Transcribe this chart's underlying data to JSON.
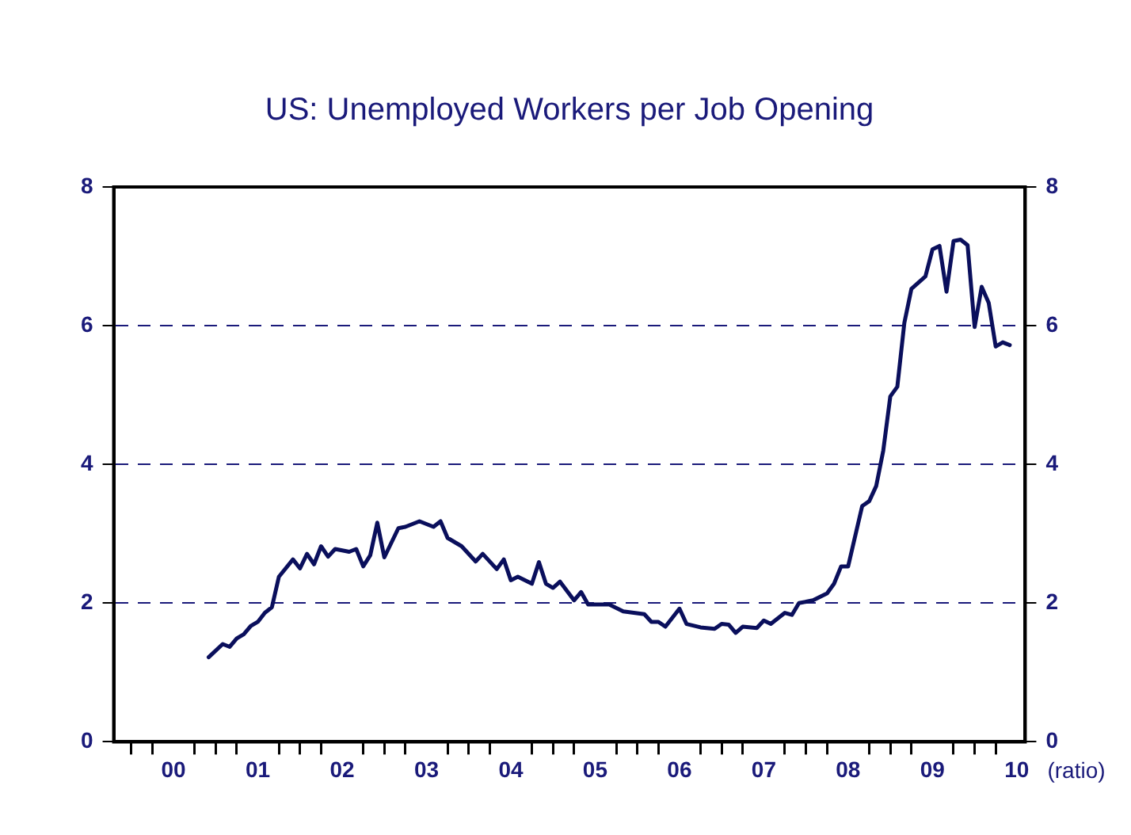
{
  "chart_data": {
    "type": "line",
    "title": "US: Unemployed Workers per Job Opening",
    "x": [
      "2000-12",
      "2001-02",
      "2001-03",
      "2001-04",
      "2001-05",
      "2001-06",
      "2001-07",
      "2001-08",
      "2001-09",
      "2001-10",
      "2001-12",
      "2002-01",
      "2002-02",
      "2002-03",
      "2002-04",
      "2002-05",
      "2002-06",
      "2002-08",
      "2002-09",
      "2002-10",
      "2002-11",
      "2002-12",
      "2003-01",
      "2003-03",
      "2003-04",
      "2003-06",
      "2003-08",
      "2003-09",
      "2003-10",
      "2003-12",
      "2004-02",
      "2004-03",
      "2004-05",
      "2004-06",
      "2004-07",
      "2004-08",
      "2004-10",
      "2004-11",
      "2004-12",
      "2005-01",
      "2005-02",
      "2005-04",
      "2005-05",
      "2005-06",
      "2005-09",
      "2005-11",
      "2006-02",
      "2006-03",
      "2006-04",
      "2006-05",
      "2006-07",
      "2006-08",
      "2006-10",
      "2006-12",
      "2007-01",
      "2007-02",
      "2007-03",
      "2007-04",
      "2007-06",
      "2007-07",
      "2007-08",
      "2007-10",
      "2007-11",
      "2007-12",
      "2008-02",
      "2008-04",
      "2008-05",
      "2008-06",
      "2008-07",
      "2008-09",
      "2008-10",
      "2008-11",
      "2008-12",
      "2009-01",
      "2009-02",
      "2009-03",
      "2009-04",
      "2009-06",
      "2009-07",
      "2009-08",
      "2009-09",
      "2009-10",
      "2009-11",
      "2009-12",
      "2010-01",
      "2010-02",
      "2010-03",
      "2010-04",
      "2010-05",
      "2010-06"
    ],
    "series": [
      {
        "color": "#0a0f5c",
        "values": [
          1.22,
          1.41,
          1.37,
          1.49,
          1.55,
          1.67,
          1.73,
          1.86,
          1.94,
          2.38,
          2.63,
          2.5,
          2.71,
          2.56,
          2.82,
          2.67,
          2.78,
          2.74,
          2.78,
          2.53,
          2.69,
          3.16,
          2.66,
          3.08,
          3.1,
          3.18,
          3.1,
          3.18,
          2.94,
          2.82,
          2.6,
          2.71,
          2.49,
          2.63,
          2.33,
          2.38,
          2.28,
          2.59,
          2.28,
          2.22,
          2.31,
          2.04,
          2.16,
          1.98,
          1.98,
          1.88,
          1.84,
          1.73,
          1.73,
          1.66,
          1.92,
          1.7,
          1.65,
          1.63,
          1.7,
          1.69,
          1.57,
          1.66,
          1.64,
          1.75,
          1.7,
          1.86,
          1.83,
          2.0,
          2.04,
          2.14,
          2.28,
          2.53,
          2.53,
          3.4,
          3.47,
          3.69,
          4.2,
          4.98,
          5.12,
          6.04,
          6.53,
          6.71,
          7.1,
          7.15,
          6.49,
          7.22,
          7.24,
          7.16,
          5.98,
          6.56,
          6.33,
          5.7,
          5.76,
          5.72
        ]
      }
    ],
    "xlim": [
      "1999-10-16",
      "2010-08-07"
    ],
    "xticks": [
      {
        "value": "2000-01",
        "label": null
      },
      {
        "value": "2000-04",
        "label": null
      },
      {
        "value": "2000-07",
        "label": "00"
      },
      {
        "value": "2000-10",
        "label": null
      },
      {
        "value": "2001-01",
        "label": null
      },
      {
        "value": "2001-04",
        "label": null
      },
      {
        "value": "2001-07",
        "label": "01"
      },
      {
        "value": "2001-10",
        "label": null
      },
      {
        "value": "2002-01",
        "label": null
      },
      {
        "value": "2002-04",
        "label": null
      },
      {
        "value": "2002-07",
        "label": "02"
      },
      {
        "value": "2002-10",
        "label": null
      },
      {
        "value": "2003-01",
        "label": null
      },
      {
        "value": "2003-04",
        "label": null
      },
      {
        "value": "2003-07",
        "label": "03"
      },
      {
        "value": "2003-10",
        "label": null
      },
      {
        "value": "2004-01",
        "label": null
      },
      {
        "value": "2004-04",
        "label": null
      },
      {
        "value": "2004-07",
        "label": "04"
      },
      {
        "value": "2004-10",
        "label": null
      },
      {
        "value": "2005-01",
        "label": null
      },
      {
        "value": "2005-04",
        "label": null
      },
      {
        "value": "2005-07",
        "label": "05"
      },
      {
        "value": "2005-10",
        "label": null
      },
      {
        "value": "2006-01",
        "label": null
      },
      {
        "value": "2006-04",
        "label": null
      },
      {
        "value": "2006-07",
        "label": "06"
      },
      {
        "value": "2006-10",
        "label": null
      },
      {
        "value": "2007-01",
        "label": null
      },
      {
        "value": "2007-04",
        "label": null
      },
      {
        "value": "2007-07",
        "label": "07"
      },
      {
        "value": "2007-10",
        "label": null
      },
      {
        "value": "2008-01",
        "label": null
      },
      {
        "value": "2008-04",
        "label": null
      },
      {
        "value": "2008-07",
        "label": "08"
      },
      {
        "value": "2008-10",
        "label": null
      },
      {
        "value": "2009-01",
        "label": null
      },
      {
        "value": "2009-04",
        "label": null
      },
      {
        "value": "2009-07",
        "label": "09"
      },
      {
        "value": "2009-10",
        "label": null
      },
      {
        "value": "2010-01",
        "label": null
      },
      {
        "value": "2010-04",
        "label": null
      },
      {
        "value": "2010-07",
        "label": "10"
      }
    ],
    "ylim": [
      0,
      8
    ],
    "yticks": [
      0,
      2,
      4,
      6,
      8
    ],
    "y2lim": [
      0,
      8
    ],
    "y2ticks": [
      0,
      2,
      4,
      6,
      8
    ],
    "grid": "y",
    "line_style": "solid",
    "marker": "none",
    "annotations": [
      "(ratio)"
    ]
  }
}
